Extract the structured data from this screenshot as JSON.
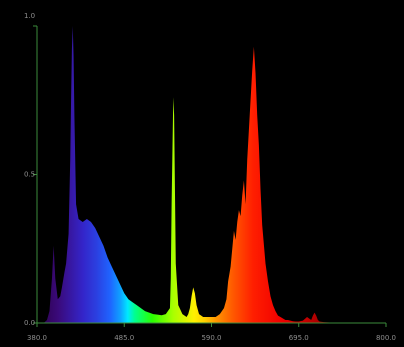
{
  "chart_data": {
    "type": "area",
    "title": "",
    "xlabel": "",
    "ylabel": "",
    "xlim": [
      380,
      800
    ],
    "ylim": [
      0,
      1
    ],
    "grid": false,
    "legend": "none",
    "x_ticks": [
      "380.0",
      "485.0",
      "590.0",
      "695.0",
      "800.0"
    ],
    "y_ticks": [
      "1.0",
      "0.5",
      "0.0"
    ],
    "axis_color": "#3c8c3c",
    "fill": "wavelength-spectrum-gradient",
    "series": [
      {
        "x": [
          380,
          385,
          388,
          392,
          395,
          398,
          400,
          402,
          405,
          408,
          410,
          413,
          415,
          418,
          420,
          421,
          422,
          423,
          424,
          425,
          427,
          430,
          435,
          440,
          445,
          450,
          455,
          460,
          465,
          470,
          475,
          480,
          485,
          490,
          495,
          500,
          505,
          510,
          515,
          520,
          525,
          530,
          535,
          540,
          541,
          542,
          543,
          544,
          545,
          546,
          547,
          550,
          555,
          560,
          562,
          564,
          566,
          568,
          570,
          572,
          575,
          580,
          585,
          590,
          595,
          600,
          605,
          608,
          610,
          613,
          615,
          617,
          619,
          621,
          623,
          625,
          627,
          629,
          631,
          633,
          635,
          637,
          639,
          641,
          643,
          645,
          647,
          649,
          651,
          655,
          658,
          661,
          664,
          667,
          670,
          673,
          676,
          679,
          682,
          685,
          688,
          691,
          695,
          700,
          705,
          710,
          712,
          714,
          716,
          718,
          720,
          725,
          730,
          740,
          750,
          760,
          770,
          780,
          790,
          800
        ],
        "y": [
          0,
          0,
          0,
          0.01,
          0.04,
          0.15,
          0.26,
          0.15,
          0.08,
          0.09,
          0.12,
          0.17,
          0.2,
          0.3,
          0.55,
          0.75,
          0.92,
          1.0,
          0.9,
          0.7,
          0.4,
          0.35,
          0.34,
          0.35,
          0.34,
          0.32,
          0.29,
          0.26,
          0.22,
          0.19,
          0.16,
          0.13,
          0.1,
          0.08,
          0.07,
          0.06,
          0.05,
          0.04,
          0.035,
          0.03,
          0.028,
          0.026,
          0.03,
          0.05,
          0.15,
          0.4,
          0.58,
          0.76,
          0.7,
          0.45,
          0.2,
          0.06,
          0.03,
          0.02,
          0.03,
          0.05,
          0.09,
          0.12,
          0.1,
          0.06,
          0.03,
          0.02,
          0.02,
          0.02,
          0.02,
          0.03,
          0.05,
          0.08,
          0.14,
          0.19,
          0.25,
          0.31,
          0.28,
          0.34,
          0.38,
          0.36,
          0.43,
          0.48,
          0.4,
          0.55,
          0.65,
          0.75,
          0.85,
          0.93,
          0.84,
          0.7,
          0.6,
          0.45,
          0.33,
          0.2,
          0.14,
          0.09,
          0.06,
          0.04,
          0.025,
          0.02,
          0.015,
          0.01,
          0.01,
          0.008,
          0.006,
          0.005,
          0.005,
          0.008,
          0.02,
          0.01,
          0.025,
          0.035,
          0.025,
          0.01,
          0.005,
          0.003,
          0.002,
          0,
          0,
          0,
          0,
          0,
          0,
          0
        ]
      }
    ]
  }
}
